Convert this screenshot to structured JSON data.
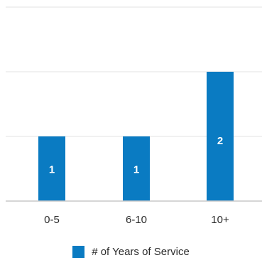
{
  "chart_data": {
    "type": "bar",
    "categories": [
      "0-5",
      "6-10",
      "10+"
    ],
    "series": [
      {
        "name": "# of Years of Service",
        "values": [
          1,
          1,
          2
        ]
      }
    ],
    "ylim": [
      0,
      3
    ],
    "grid": true,
    "show_data_labels": true,
    "legend_position": "bottom",
    "color": "#0a7bc2"
  }
}
